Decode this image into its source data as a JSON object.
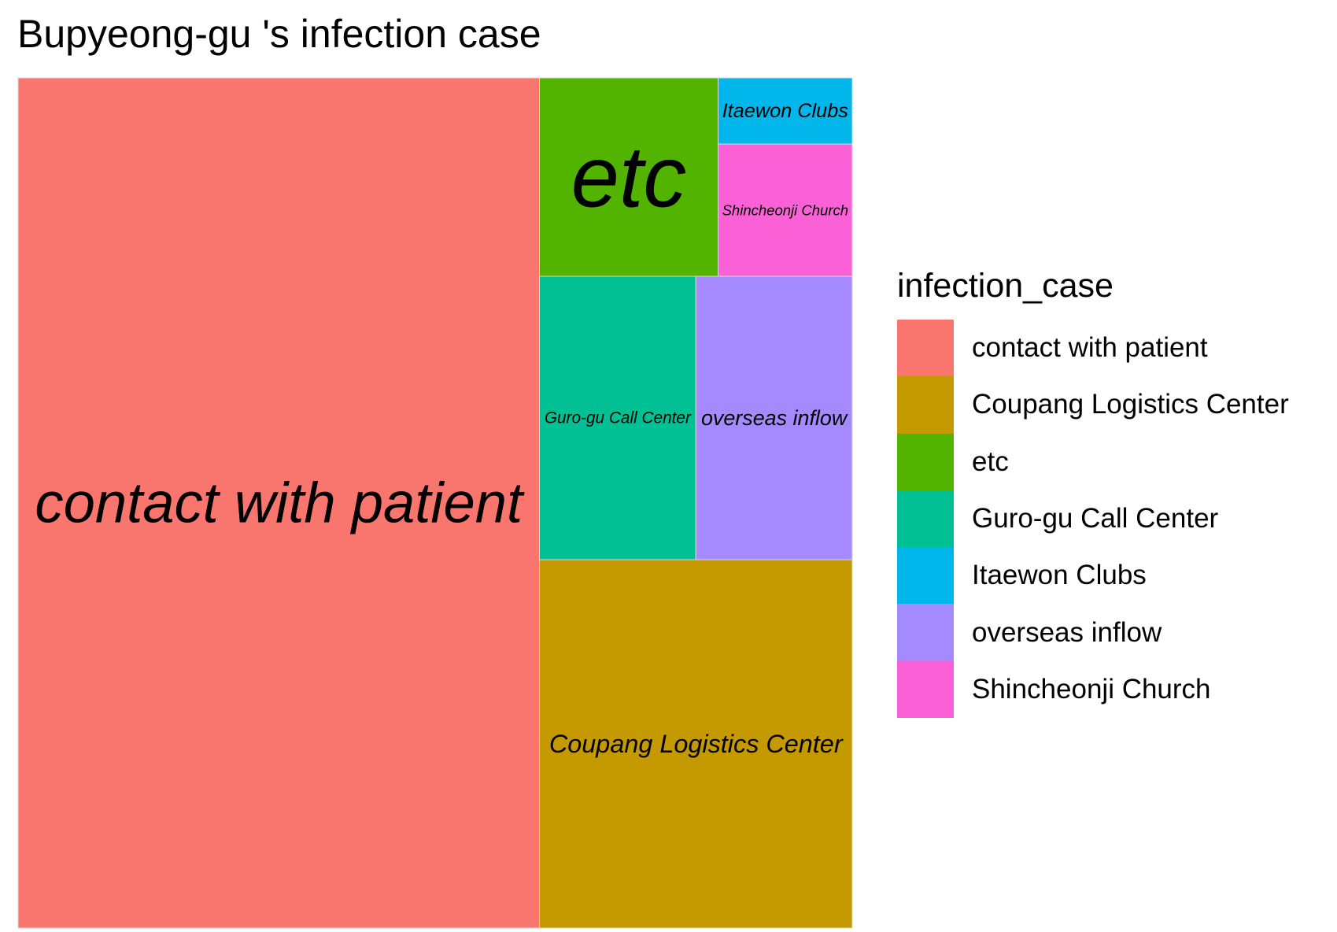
{
  "chart_data": {
    "type": "treemap",
    "title": "Bupyeong-gu 's infection case",
    "legend_title": "infection_case",
    "legend_position": "right",
    "categories": [
      {
        "name": "contact with patient",
        "value": 50,
        "color": "#F8766D"
      },
      {
        "name": "Coupang Logistics Center",
        "value": 13,
        "color": "#C49A00"
      },
      {
        "name": "etc",
        "value": 4,
        "color": "#53B400"
      },
      {
        "name": "Guro-gu Call Center",
        "value": 5,
        "color": "#00C094"
      },
      {
        "name": "Itaewon Clubs",
        "value": 1,
        "color": "#00B6EB"
      },
      {
        "name": "overseas inflow",
        "value": 5,
        "color": "#A58AFF"
      },
      {
        "name": "Shincheonji Church",
        "value": 2,
        "color": "#FB61D7"
      }
    ]
  }
}
